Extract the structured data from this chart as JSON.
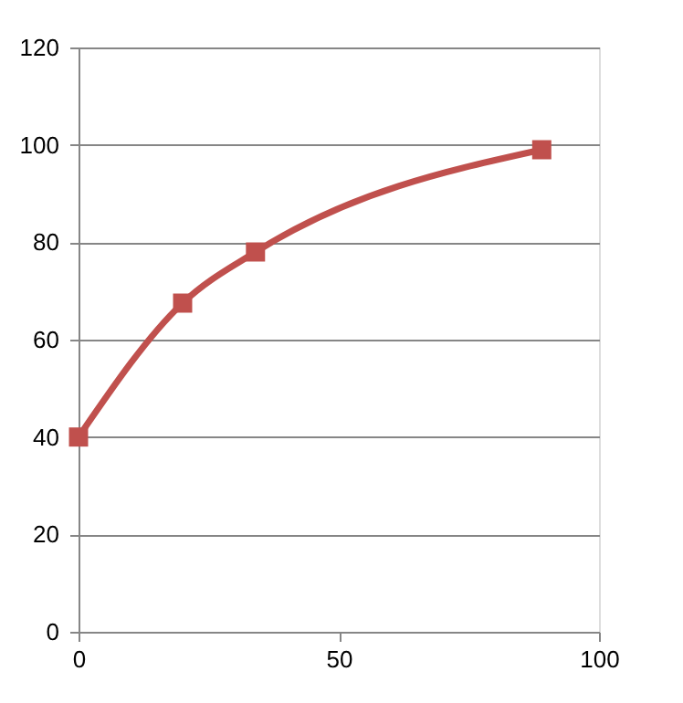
{
  "chart_data": {
    "type": "line",
    "x": [
      0,
      20,
      34,
      89
    ],
    "series": [
      {
        "color": "#c0504d",
        "values": [
          40,
          67.5,
          78,
          99
        ]
      }
    ],
    "xlim": [
      0,
      100
    ],
    "xticks": [
      0,
      50,
      100
    ],
    "ylim": [
      0,
      120
    ],
    "yticks": [
      0,
      20,
      40,
      60,
      80,
      100,
      120
    ],
    "grid": "y",
    "marker": "square",
    "line_style": "solid"
  }
}
